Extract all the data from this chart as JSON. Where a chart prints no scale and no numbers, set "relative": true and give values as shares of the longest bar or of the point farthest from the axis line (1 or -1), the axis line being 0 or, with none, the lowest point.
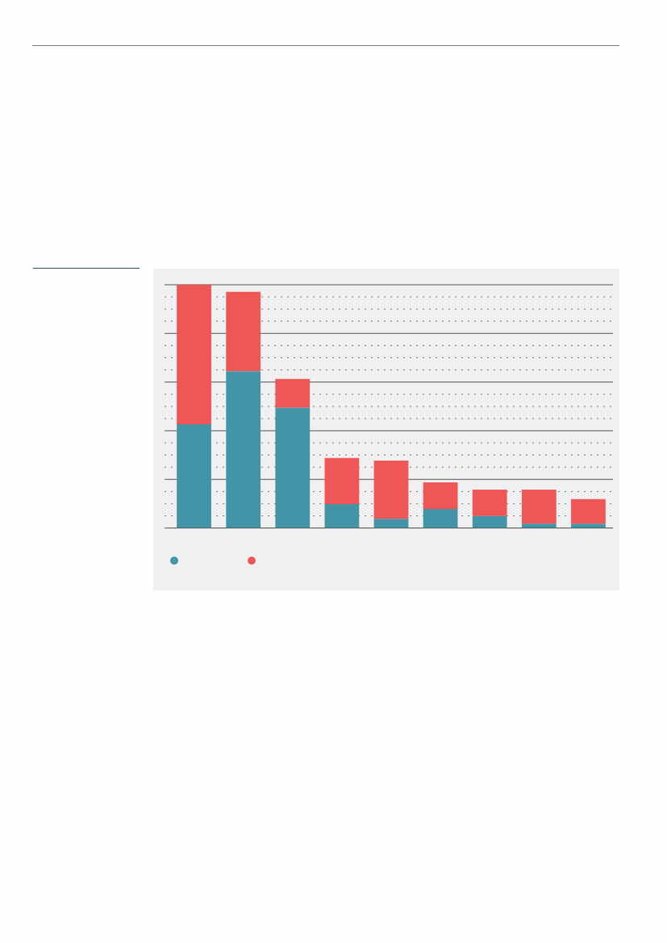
{
  "chart_data": {
    "type": "bar",
    "relative": true,
    "stacked": true,
    "grid": "y",
    "categories": [
      null,
      null,
      null,
      null,
      null,
      null,
      null,
      null,
      null
    ],
    "series": [
      {
        "color": "#4394a6",
        "values": [
          0.426,
          0.644,
          0.494,
          0.098,
          0.038,
          0.078,
          0.049,
          0.018,
          0.018
        ]
      },
      {
        "color": "#ef5656",
        "values": [
          0.574,
          0.327,
          0.119,
          0.19,
          0.239,
          0.11,
          0.109,
          0.14,
          0.101
        ]
      }
    ]
  }
}
